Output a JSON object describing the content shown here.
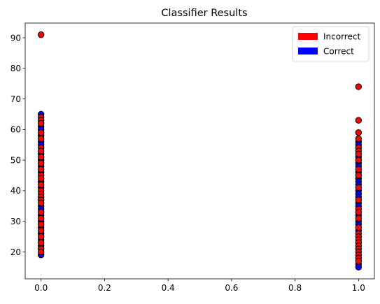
{
  "chart_data": {
    "type": "scatter",
    "title": "Classifier Results",
    "xlabel": "",
    "ylabel": "",
    "xlim": [
      -0.05,
      1.05
    ],
    "ylim": [
      11.2,
      94.8
    ],
    "xticks": [
      0.0,
      0.2,
      0.4,
      0.6,
      0.8,
      1.0
    ],
    "xtick_labels": [
      "0.0",
      "0.2",
      "0.4",
      "0.6",
      "0.8",
      "1.0"
    ],
    "yticks": [
      20,
      30,
      40,
      50,
      60,
      70,
      80,
      90
    ],
    "ytick_labels": [
      "20",
      "30",
      "40",
      "50",
      "60",
      "70",
      "80",
      "90"
    ],
    "grid": false,
    "legend_position": "top-right",
    "series": [
      {
        "name": "Incorrect",
        "color": "#ff0000",
        "points": [
          {
            "x": 0,
            "y": 91
          },
          {
            "x": 0,
            "y": 64
          },
          {
            "x": 0,
            "y": 63
          },
          {
            "x": 0,
            "y": 62
          },
          {
            "x": 0,
            "y": 59
          },
          {
            "x": 0,
            "y": 57
          },
          {
            "x": 0,
            "y": 54
          },
          {
            "x": 0,
            "y": 53
          },
          {
            "x": 0,
            "y": 51
          },
          {
            "x": 0,
            "y": 49
          },
          {
            "x": 0,
            "y": 47
          },
          {
            "x": 0,
            "y": 45
          },
          {
            "x": 0,
            "y": 44
          },
          {
            "x": 0,
            "y": 42
          },
          {
            "x": 0,
            "y": 40
          },
          {
            "x": 0,
            "y": 39
          },
          {
            "x": 0,
            "y": 38
          },
          {
            "x": 0,
            "y": 37
          },
          {
            "x": 0,
            "y": 36
          },
          {
            "x": 0,
            "y": 33
          },
          {
            "x": 0,
            "y": 31
          },
          {
            "x": 0,
            "y": 29
          },
          {
            "x": 0,
            "y": 27
          },
          {
            "x": 0,
            "y": 25
          },
          {
            "x": 0,
            "y": 23
          },
          {
            "x": 0,
            "y": 21
          },
          {
            "x": 0,
            "y": 20
          },
          {
            "x": 1,
            "y": 74
          },
          {
            "x": 1,
            "y": 63
          },
          {
            "x": 1,
            "y": 59
          },
          {
            "x": 1,
            "y": 57
          },
          {
            "x": 1,
            "y": 54
          },
          {
            "x": 1,
            "y": 53
          },
          {
            "x": 1,
            "y": 52
          },
          {
            "x": 1,
            "y": 50
          },
          {
            "x": 1,
            "y": 47
          },
          {
            "x": 1,
            "y": 45
          },
          {
            "x": 1,
            "y": 41
          },
          {
            "x": 1,
            "y": 37
          },
          {
            "x": 1,
            "y": 34
          },
          {
            "x": 1,
            "y": 33
          },
          {
            "x": 1,
            "y": 31
          },
          {
            "x": 1,
            "y": 28
          },
          {
            "x": 1,
            "y": 26
          },
          {
            "x": 1,
            "y": 25
          },
          {
            "x": 1,
            "y": 24
          },
          {
            "x": 1,
            "y": 23
          },
          {
            "x": 1,
            "y": 22
          },
          {
            "x": 1,
            "y": 21
          },
          {
            "x": 1,
            "y": 20
          },
          {
            "x": 1,
            "y": 19
          },
          {
            "x": 1,
            "y": 18
          },
          {
            "x": 1,
            "y": 17
          }
        ]
      },
      {
        "name": "Correct",
        "color": "#0000ff",
        "points": [
          {
            "x": 0,
            "y": 65
          },
          {
            "x": 0,
            "y": 61
          },
          {
            "x": 0,
            "y": 60
          },
          {
            "x": 0,
            "y": 58
          },
          {
            "x": 0,
            "y": 56
          },
          {
            "x": 0,
            "y": 55
          },
          {
            "x": 0,
            "y": 52
          },
          {
            "x": 0,
            "y": 50
          },
          {
            "x": 0,
            "y": 48
          },
          {
            "x": 0,
            "y": 46
          },
          {
            "x": 0,
            "y": 43
          },
          {
            "x": 0,
            "y": 41
          },
          {
            "x": 0,
            "y": 35
          },
          {
            "x": 0,
            "y": 34
          },
          {
            "x": 0,
            "y": 32
          },
          {
            "x": 0,
            "y": 30
          },
          {
            "x": 0,
            "y": 28
          },
          {
            "x": 0,
            "y": 26
          },
          {
            "x": 0,
            "y": 24
          },
          {
            "x": 0,
            "y": 22
          },
          {
            "x": 0,
            "y": 19
          },
          {
            "x": 1,
            "y": 56
          },
          {
            "x": 1,
            "y": 55
          },
          {
            "x": 1,
            "y": 51
          },
          {
            "x": 1,
            "y": 49
          },
          {
            "x": 1,
            "y": 48
          },
          {
            "x": 1,
            "y": 46
          },
          {
            "x": 1,
            "y": 44
          },
          {
            "x": 1,
            "y": 43
          },
          {
            "x": 1,
            "y": 42
          },
          {
            "x": 1,
            "y": 40
          },
          {
            "x": 1,
            "y": 39
          },
          {
            "x": 1,
            "y": 38
          },
          {
            "x": 1,
            "y": 36
          },
          {
            "x": 1,
            "y": 35
          },
          {
            "x": 1,
            "y": 32
          },
          {
            "x": 1,
            "y": 30
          },
          {
            "x": 1,
            "y": 29
          },
          {
            "x": 1,
            "y": 27
          },
          {
            "x": 1,
            "y": 16
          },
          {
            "x": 1,
            "y": 15
          }
        ]
      }
    ],
    "draw_order": [
      "Correct",
      "Incorrect"
    ]
  }
}
